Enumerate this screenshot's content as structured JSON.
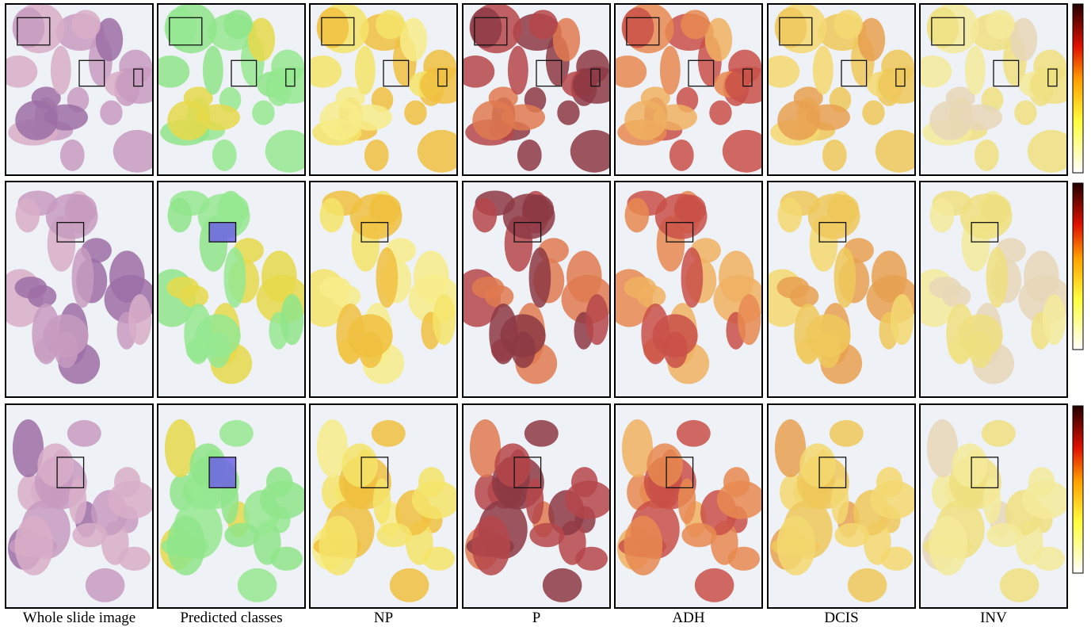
{
  "column_labels": [
    "Whole slide image",
    "Predicted classes",
    "NP",
    "P",
    "ADH",
    "DCIS",
    "INV"
  ]
}
